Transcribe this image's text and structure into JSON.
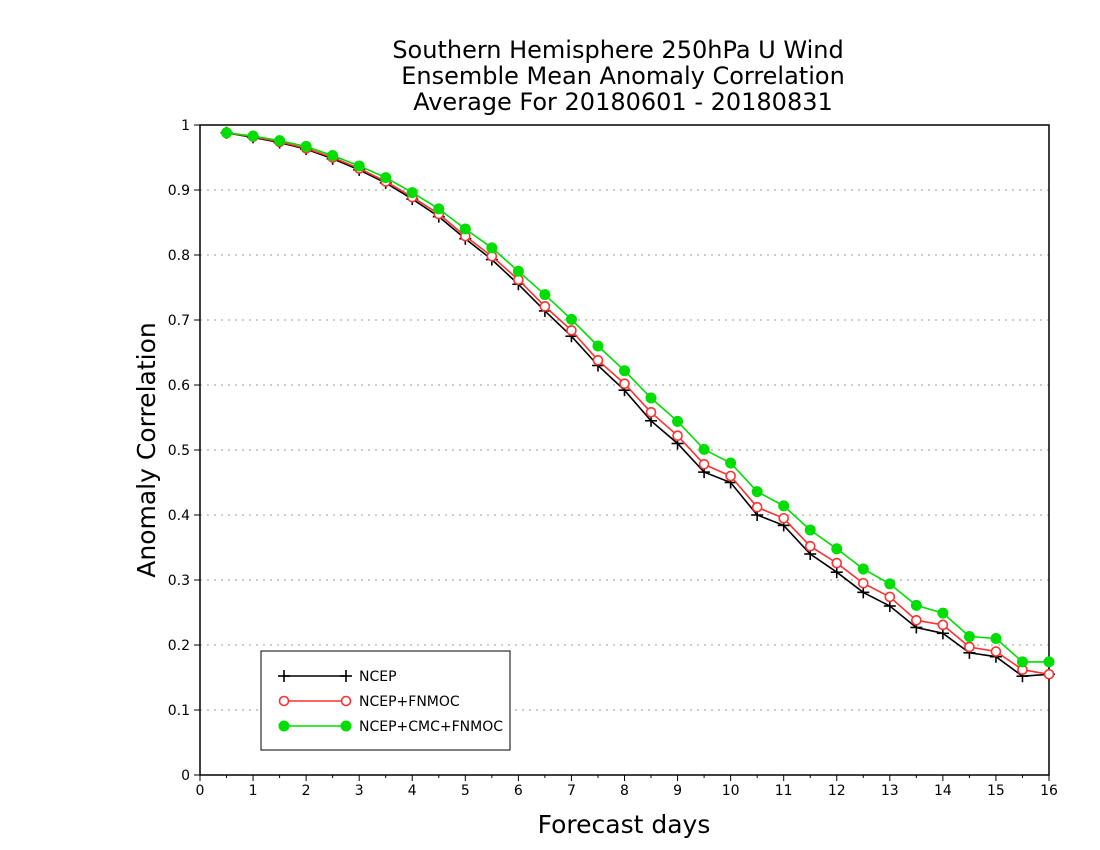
{
  "chart_data": {
    "type": "line",
    "title_lines": [
      "Southern Hemisphere 250hPa U Wind",
      "Ensemble Mean Anomaly Correlation",
      "Average For 20180601 - 20180831"
    ],
    "xlabel": "Forecast days",
    "ylabel": "Anomaly Correlation",
    "xlim": [
      0,
      16
    ],
    "ylim": [
      0,
      1
    ],
    "x_ticks": [
      "0",
      "1",
      "2",
      "3",
      "4",
      "5",
      "6",
      "7",
      "8",
      "9",
      "10",
      "11",
      "12",
      "13",
      "14",
      "15",
      "16"
    ],
    "y_ticks": [
      "0",
      "0.1",
      "0.2",
      "0.3",
      "0.4",
      "0.5",
      "0.6",
      "0.7",
      "0.8",
      "0.9",
      "1"
    ],
    "grid": "horizontal dotted",
    "legend_position": "bottom-left",
    "x": [
      0.5,
      1,
      1.5,
      2,
      2.5,
      3,
      3.5,
      4,
      4.5,
      5,
      5.5,
      6,
      6.5,
      7,
      7.5,
      8,
      8.5,
      9,
      9.5,
      10,
      10.5,
      11,
      11.5,
      12,
      12.5,
      13,
      13.5,
      14,
      14.5,
      15,
      15.5,
      16
    ],
    "series": [
      {
        "name": "NCEP",
        "color": "#000000",
        "marker": "plus",
        "values": [
          0.988,
          0.981,
          0.973,
          0.963,
          0.948,
          0.931,
          0.911,
          0.886,
          0.859,
          0.825,
          0.793,
          0.755,
          0.714,
          0.675,
          0.63,
          0.592,
          0.545,
          0.51,
          0.466,
          0.45,
          0.4,
          0.384,
          0.34,
          0.312,
          0.281,
          0.26,
          0.227,
          0.218,
          0.188,
          0.182,
          0.152,
          0.155
        ]
      },
      {
        "name": "NCEP+FNMOC",
        "color": "#ff3030",
        "marker": "open-circle",
        "values": [
          0.988,
          0.982,
          0.974,
          0.964,
          0.95,
          0.933,
          0.913,
          0.889,
          0.863,
          0.829,
          0.798,
          0.762,
          0.721,
          0.684,
          0.638,
          0.602,
          0.558,
          0.522,
          0.478,
          0.46,
          0.412,
          0.395,
          0.352,
          0.326,
          0.295,
          0.274,
          0.238,
          0.231,
          0.197,
          0.19,
          0.162,
          0.155
        ]
      },
      {
        "name": "NCEP+CMC+FNMOC",
        "color": "#00dd00",
        "marker": "filled-circle",
        "values": [
          0.988,
          0.983,
          0.976,
          0.967,
          0.953,
          0.937,
          0.919,
          0.896,
          0.871,
          0.84,
          0.811,
          0.775,
          0.739,
          0.701,
          0.66,
          0.622,
          0.58,
          0.544,
          0.501,
          0.48,
          0.436,
          0.414,
          0.377,
          0.348,
          0.317,
          0.294,
          0.261,
          0.249,
          0.213,
          0.21,
          0.174,
          0.174
        ]
      }
    ]
  }
}
